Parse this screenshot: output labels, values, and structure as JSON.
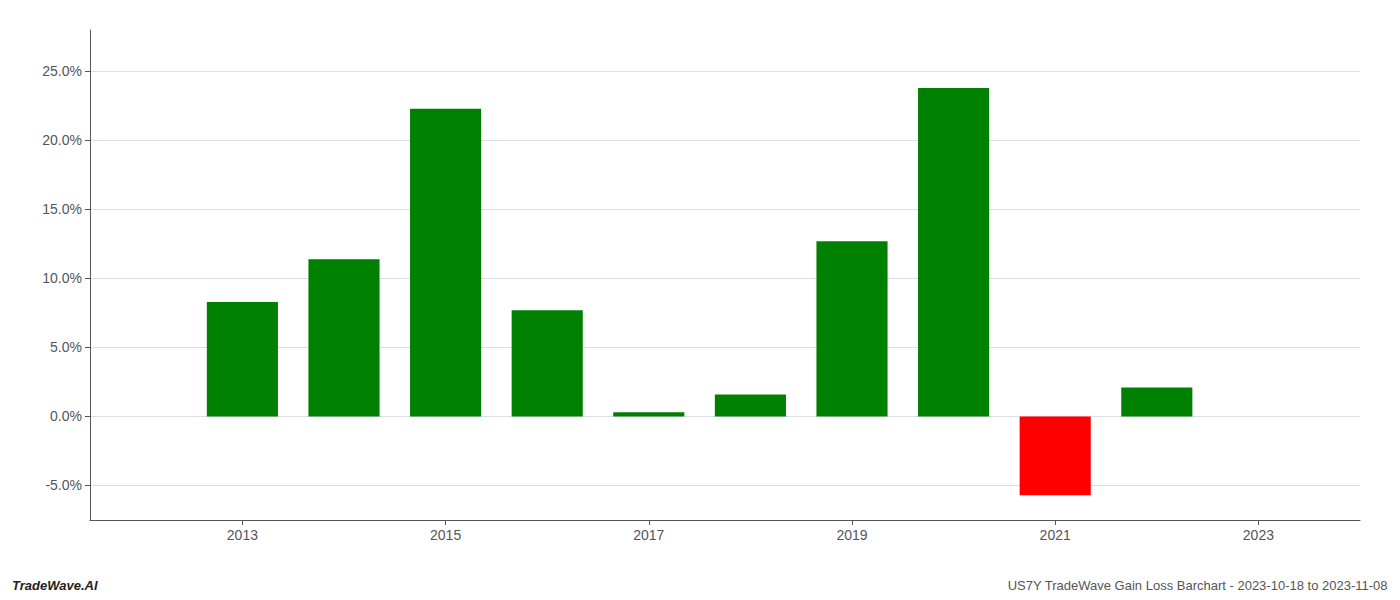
{
  "chart_data": {
    "type": "bar",
    "x": [
      2013,
      2014,
      2015,
      2016,
      2017,
      2018,
      2019,
      2020,
      2021,
      2022
    ],
    "values": [
      0.083,
      0.114,
      0.223,
      0.077,
      0.003,
      0.016,
      0.127,
      0.238,
      -0.057,
      0.021
    ],
    "colors": [
      "#008000",
      "#008000",
      "#008000",
      "#008000",
      "#008000",
      "#008000",
      "#008000",
      "#008000",
      "#ff0000",
      "#008000"
    ],
    "xlim": [
      2011.5,
      2024.0
    ],
    "xticks": [
      2013,
      2015,
      2017,
      2019,
      2021,
      2023
    ],
    "ylim": [
      -0.075,
      0.28
    ],
    "yticks": [
      {
        "value": -0.05,
        "label": "-5.0%"
      },
      {
        "value": 0.0,
        "label": "0.0%"
      },
      {
        "value": 0.05,
        "label": "5.0%"
      },
      {
        "value": 0.1,
        "label": "10.0%"
      },
      {
        "value": 0.15,
        "label": "15.0%"
      },
      {
        "value": 0.2,
        "label": "20.0%"
      },
      {
        "value": 0.25,
        "label": "25.0%"
      }
    ],
    "grid": true,
    "annotations": [
      "TradeWave.AI",
      "US7Y TradeWave Gain Loss Barchart - 2023-10-18 to 2023-11-08"
    ]
  }
}
